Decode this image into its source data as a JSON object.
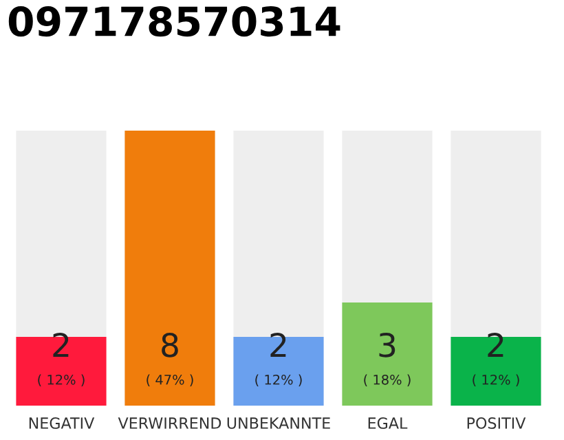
{
  "chart_data": {
    "type": "bar",
    "title": "097178570314",
    "categories": [
      "NEGATIV",
      "VERWIRREND",
      "UNBEKANNTE",
      "EGAL",
      "POSITIV"
    ],
    "values": [
      2,
      8,
      2,
      3,
      2
    ],
    "colors": [
      "#ff1a3c",
      "#f07d0c",
      "#6aa0ee",
      "#7ec85b",
      "#0ab34a"
    ],
    "value_labels": [
      "2\n( 12% )",
      "8\n( 47% )",
      "2\n( 12% )",
      "3\n( 18% )",
      "2\n( 12% )"
    ],
    "grid": false,
    "legend": false
  }
}
